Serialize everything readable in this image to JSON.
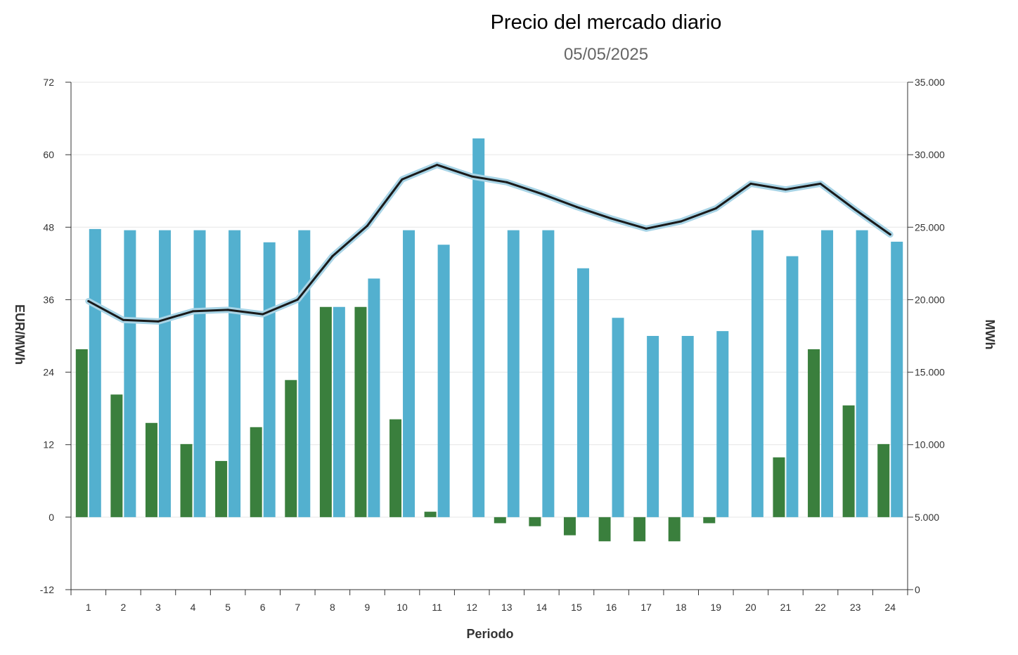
{
  "chart_data": {
    "type": "bar",
    "title": "Precio del mercado diario",
    "subtitle": "05/05/2025",
    "xlabel": "Periodo",
    "ylabel_left": "EUR/MWh",
    "ylabel_right": "MWh",
    "categories": [
      "1",
      "2",
      "3",
      "4",
      "5",
      "6",
      "7",
      "8",
      "9",
      "10",
      "11",
      "12",
      "13",
      "14",
      "15",
      "16",
      "17",
      "18",
      "19",
      "20",
      "21",
      "22",
      "23",
      "24"
    ],
    "left_axis": {
      "range": [
        -12,
        72
      ],
      "ticks": [
        "-12",
        "0",
        "12",
        "24",
        "36",
        "48",
        "60",
        "72"
      ]
    },
    "right_axis": {
      "range": [
        0,
        35000
      ],
      "ticks": [
        "0",
        "5.000",
        "10.000",
        "15.000",
        "20.000",
        "25.000",
        "30.000",
        "35.000"
      ]
    },
    "grid": true,
    "series": [
      {
        "kind": "bar",
        "axis": "left",
        "color": "#3a7f3d",
        "values": [
          27.8,
          20.3,
          15.6,
          12.1,
          9.3,
          14.9,
          22.7,
          34.8,
          34.8,
          16.2,
          0.9,
          0,
          -1.0,
          -1.5,
          -3.0,
          -4.0,
          -4.0,
          -4.0,
          -1.0,
          0,
          9.9,
          27.8,
          18.5,
          12.1
        ]
      },
      {
        "kind": "bar",
        "axis": "left",
        "color": "#53b0cf",
        "values": [
          47.7,
          47.5,
          47.5,
          47.5,
          47.5,
          45.5,
          47.5,
          34.8,
          39.5,
          47.5,
          45.1,
          62.7,
          47.5,
          47.5,
          41.2,
          33.0,
          30.0,
          30.0,
          30.8,
          47.5,
          43.2,
          47.5,
          47.5,
          45.6
        ]
      },
      {
        "kind": "line",
        "axis": "right",
        "color": "#1a1a1a",
        "halo_color": "#a8d4e6",
        "values": [
          19900,
          18600,
          18500,
          19200,
          19300,
          19000,
          20000,
          23000,
          25100,
          28300,
          29300,
          28500,
          28100,
          27300,
          26400,
          25600,
          24900,
          25400,
          26300,
          28000,
          27600,
          28000,
          26200,
          24500
        ]
      }
    ]
  }
}
